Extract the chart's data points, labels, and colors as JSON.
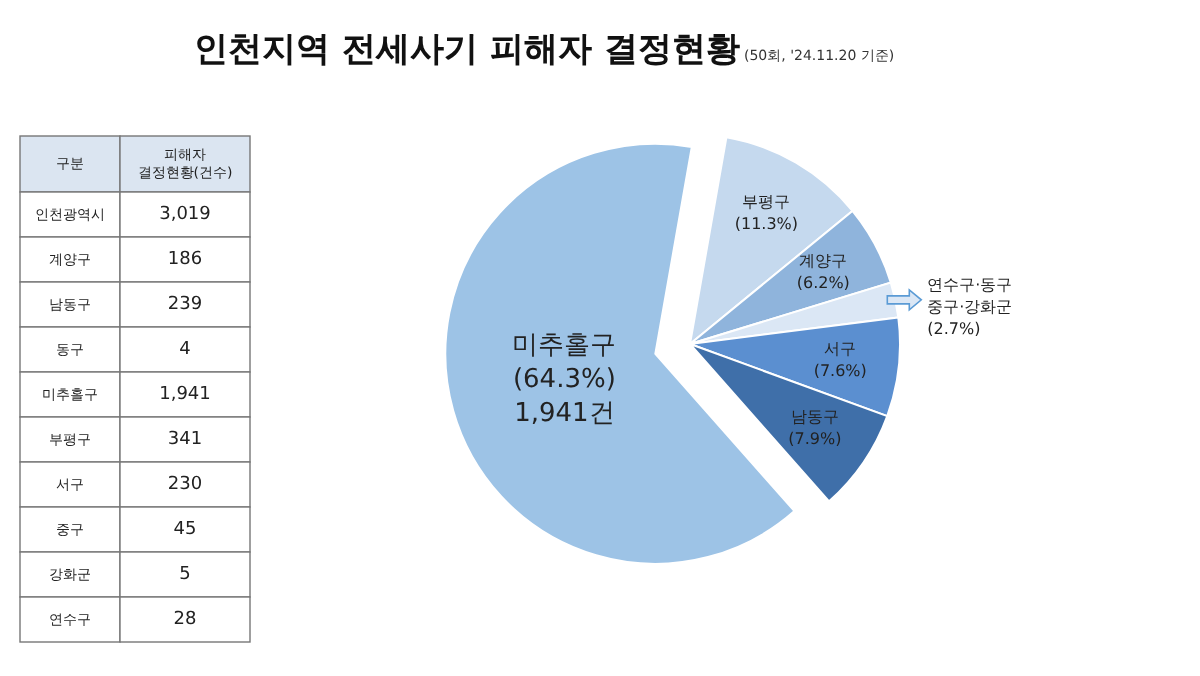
{
  "chart_data": {
    "type": "pie",
    "title": "인천지역 전세사기 피해자 결정현황",
    "subtitle": "(50회, '24.11.20 기준)",
    "categories": [
      "부평구",
      "계양구",
      "연수구·동구\n중구·강화군",
      "서구",
      "남동구",
      "미추홀구"
    ],
    "values": [
      11.3,
      6.2,
      2.7,
      7.6,
      7.9,
      64.3
    ],
    "colors": [
      "#c5d9ee",
      "#8fb4dc",
      "#dbe7f5",
      "#5b8fd0",
      "#3f6fa9",
      "#9dc3e6"
    ],
    "value_labels": [
      "(11.3%)",
      "(6.2%)",
      "(2.7%)",
      "(7.6%)",
      "(7.9%)",
      "(64.3%)\n1,941건"
    ],
    "annotations": [
      "구분",
      "피해자\n결정현황(건수)",
      "인천광역시",
      "3,019",
      "계양구",
      "186",
      "남동구",
      "239",
      "동구",
      "4",
      "미추홀구",
      "1,941",
      "부평구",
      "341",
      "서구",
      "230",
      "중구",
      "45",
      "강화군",
      "5",
      "연수구",
      "28"
    ]
  }
}
